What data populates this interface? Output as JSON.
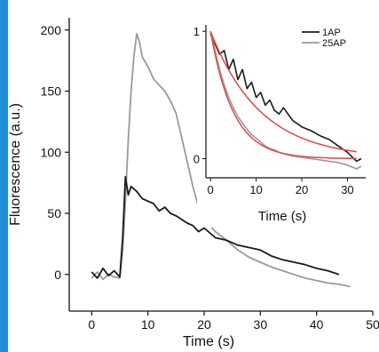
{
  "colors": {
    "series_1ap": "#1a1a1a",
    "series_25ap": "#9a9a9a",
    "fit": "#d9534f",
    "left_bar": "#1e8fd6"
  },
  "chart_data": [
    {
      "type": "line",
      "title": "",
      "xlabel": "Time (s)",
      "ylabel": "Fluorescence (a.u.)",
      "xlim": [
        -4,
        50
      ],
      "ylim": [
        -30,
        210
      ],
      "xticks": [
        "0",
        "10",
        "20",
        "30",
        "40",
        "50"
      ],
      "yticks": [
        "0",
        "50",
        "100",
        "150",
        "200"
      ],
      "series": [
        {
          "name": "25AP",
          "color": "#9a9a9a",
          "x": [
            0,
            1,
            2,
            3,
            4,
            5,
            5.5,
            6,
            6.5,
            7,
            7.5,
            8,
            8.5,
            9,
            10,
            11,
            12,
            13,
            14,
            15,
            16,
            17,
            18,
            19,
            20,
            21,
            22,
            24,
            26,
            28,
            30,
            32,
            34,
            36,
            38,
            40,
            42,
            44,
            46
          ],
          "y": [
            -3,
            2,
            -4,
            0,
            -2,
            -3,
            20,
            60,
            110,
            150,
            178,
            197,
            190,
            178,
            170,
            160,
            155,
            150,
            142,
            132,
            112,
            92,
            72,
            55,
            48,
            40,
            35,
            28,
            20,
            14,
            10,
            6,
            3,
            0,
            -3,
            -5,
            -7,
            -8,
            -10
          ]
        },
        {
          "name": "1AP",
          "color": "#1a1a1a",
          "x": [
            0,
            1,
            2,
            3,
            4,
            5,
            5.5,
            6,
            6.5,
            7,
            8,
            9,
            10,
            11,
            12,
            13,
            14,
            15,
            16,
            17,
            18,
            19,
            20,
            22,
            24,
            26,
            28,
            30,
            32,
            34,
            36,
            38,
            40,
            42,
            44
          ],
          "y": [
            2,
            -3,
            5,
            -1,
            3,
            -2,
            30,
            80,
            65,
            72,
            68,
            62,
            60,
            58,
            52,
            55,
            50,
            48,
            45,
            42,
            40,
            35,
            38,
            30,
            28,
            24,
            22,
            20,
            15,
            12,
            10,
            8,
            5,
            3,
            0
          ]
        }
      ]
    },
    {
      "type": "line",
      "title": "",
      "xlabel": "Time (s)",
      "ylabel": "",
      "xlim": [
        -1,
        34
      ],
      "ylim": [
        -0.15,
        1.05
      ],
      "xticks": [
        "0",
        "10",
        "20",
        "30"
      ],
      "yticks": [
        "0",
        "1"
      ],
      "legend_position": "top-right",
      "series": [
        {
          "name": "1AP",
          "color": "#1a1a1a",
          "x": [
            0,
            1,
            2,
            3,
            4,
            5,
            6,
            7,
            8,
            9,
            10,
            11,
            12,
            13,
            14,
            15,
            16,
            18,
            20,
            22,
            24,
            26,
            28,
            30,
            32,
            33
          ],
          "y": [
            0.98,
            0.9,
            0.82,
            0.85,
            0.7,
            0.78,
            0.62,
            0.7,
            0.55,
            0.6,
            0.48,
            0.52,
            0.42,
            0.46,
            0.38,
            0.35,
            0.4,
            0.3,
            0.25,
            0.22,
            0.18,
            0.15,
            0.1,
            0.05,
            -0.02,
            0.0
          ]
        },
        {
          "name": "25AP",
          "color": "#9a9a9a",
          "x": [
            0,
            1,
            2,
            3,
            4,
            5,
            6,
            7,
            8,
            9,
            10,
            11,
            12,
            13,
            14,
            15,
            16,
            18,
            20,
            22,
            24,
            26,
            28,
            30,
            32,
            33
          ],
          "y": [
            1.0,
            0.85,
            0.7,
            0.58,
            0.48,
            0.4,
            0.33,
            0.28,
            0.23,
            0.19,
            0.16,
            0.13,
            0.1,
            0.08,
            0.07,
            0.05,
            0.04,
            0.02,
            0.01,
            0.0,
            -0.01,
            -0.02,
            -0.03,
            -0.05,
            -0.08,
            -0.06
          ]
        }
      ],
      "fits": [
        {
          "series": "1AP",
          "tau": 11,
          "color": "#d9534f"
        },
        {
          "series": "25AP",
          "tau": 5,
          "color": "#d9534f"
        }
      ]
    }
  ]
}
